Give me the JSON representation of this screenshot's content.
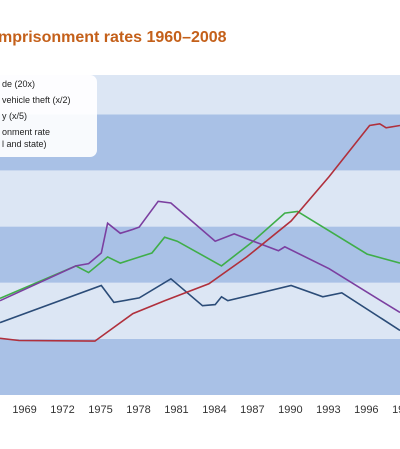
{
  "chart_data": {
    "type": "line",
    "title": "mprisonment rates 1960–2008",
    "xlim": [
      1967,
      1998.6
    ],
    "ylim": [
      0,
      5.7
    ],
    "xticks": [
      1969,
      1972,
      1975,
      1978,
      1981,
      1984,
      1987,
      1990,
      1993,
      1996,
      {
        "value": 1999,
        "label": "19"
      }
    ],
    "grid_bands": [
      0,
      1,
      2,
      3,
      4,
      5
    ],
    "band_colors": [
      "#a9c1e6",
      "#dce6f4"
    ],
    "series": [
      {
        "name": "de (20x)",
        "color": "#2b4c78",
        "x": [
          1967,
          1975,
          1976,
          1978,
          1980.5,
          1983,
          1984,
          1984.5,
          1985,
          1990,
          1992.5,
          1994,
          1998.6
        ],
        "values": [
          1.29,
          1.95,
          1.65,
          1.73,
          2.07,
          1.59,
          1.61,
          1.75,
          1.68,
          1.95,
          1.75,
          1.82,
          1.15
        ]
      },
      {
        "name": "vehicle theft (x/2)",
        "color": "#3fae49",
        "x": [
          1967,
          1973,
          1974,
          1975.5,
          1976.5,
          1979,
          1980,
          1981,
          1984.5,
          1987,
          1989.5,
          1990.5,
          1996,
          1998.6
        ],
        "values": [
          1.72,
          2.3,
          2.18,
          2.46,
          2.35,
          2.53,
          2.81,
          2.74,
          2.3,
          2.74,
          3.24,
          3.27,
          2.51,
          2.35
        ]
      },
      {
        "name": "y (x/5)",
        "color": "#7b3fa0",
        "x": [
          1967,
          1973,
          1974,
          1975,
          1975.5,
          1976.5,
          1977.5,
          1978,
          1979.5,
          1980.5,
          1984,
          1985.5,
          1987,
          1989,
          1989.5,
          1993,
          1998.6
        ],
        "values": [
          1.68,
          2.3,
          2.34,
          2.53,
          3.06,
          2.88,
          2.95,
          2.99,
          3.45,
          3.42,
          2.74,
          2.87,
          2.74,
          2.57,
          2.64,
          2.25,
          1.47
        ]
      },
      {
        "name": "onment rate\nl and state)",
        "color": "#b0303c",
        "x": [
          1967,
          1968.5,
          1974.5,
          1977.5,
          1980,
          1983.5,
          1986.5,
          1990,
          1993,
          1996.2,
          1997,
          1997.5,
          1998.6
        ],
        "values": [
          1.01,
          0.97,
          0.96,
          1.45,
          1.68,
          1.98,
          2.46,
          3.1,
          3.89,
          4.8,
          4.83,
          4.76,
          4.8
        ]
      }
    ]
  }
}
